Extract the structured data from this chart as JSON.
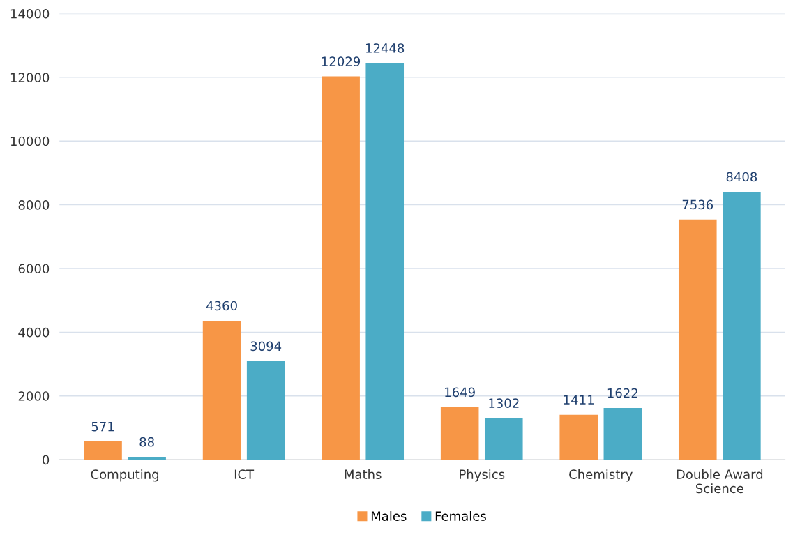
{
  "chart_data": {
    "type": "bar",
    "categories": [
      "Computing",
      "ICT",
      "Maths",
      "Physics",
      "Chemistry",
      "Double Award\nScience"
    ],
    "series": [
      {
        "name": "Males",
        "color": "#f79646",
        "values": [
          571,
          4360,
          12029,
          1649,
          1411,
          7536
        ]
      },
      {
        "name": "Females",
        "color": "#4bacc6",
        "values": [
          88,
          3094,
          12448,
          1302,
          1622,
          8408
        ]
      }
    ],
    "ylim": [
      0,
      14000
    ],
    "yticks": [
      0,
      2000,
      4000,
      6000,
      8000,
      10000,
      12000,
      14000
    ],
    "grid": "y",
    "legend": "bottom",
    "data_labels": true
  }
}
